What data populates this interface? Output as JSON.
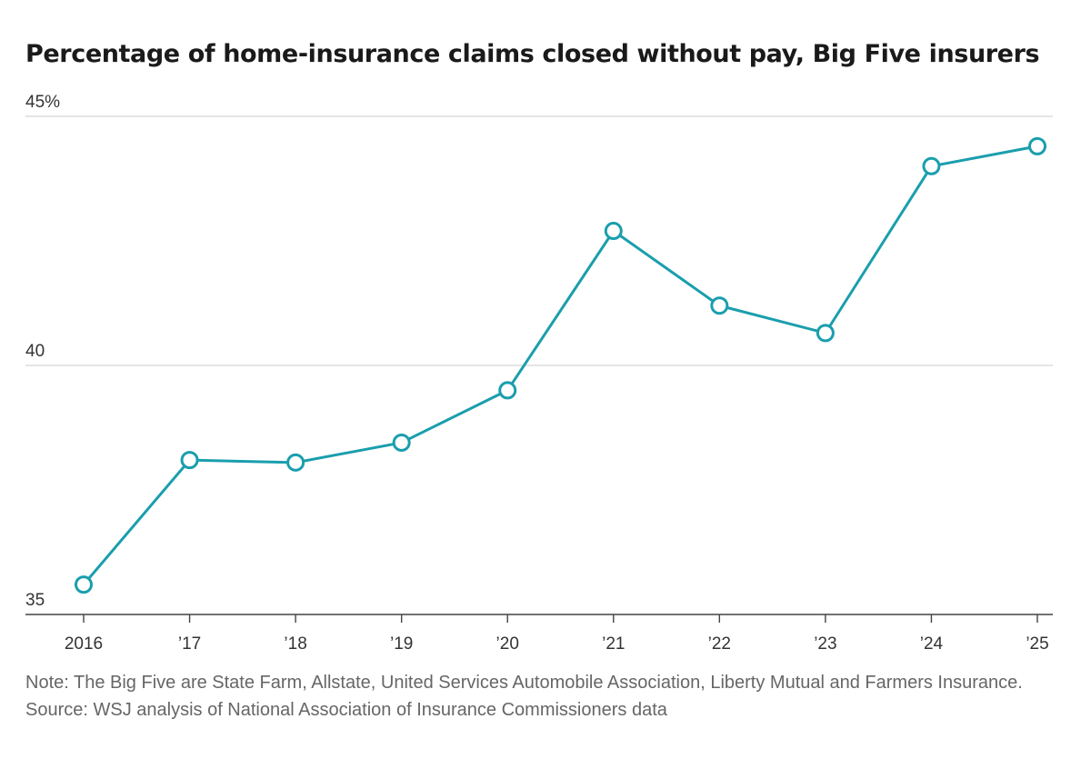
{
  "chart_data": {
    "type": "line",
    "title": "Percentage of home-insurance claims closed without pay, Big Five insurers",
    "x": [
      "2016",
      "’17",
      "’18",
      "’19",
      "’20",
      "’21",
      "’22",
      "’23",
      "’24",
      "’25"
    ],
    "series": [
      {
        "values": [
          35.6,
          38.1,
          38.05,
          38.45,
          39.5,
          42.7,
          41.2,
          40.65,
          44.0,
          44.4
        ],
        "color": "#1a9ead"
      }
    ],
    "y_ticks": [
      {
        "value": 45,
        "label": "45%"
      },
      {
        "value": 40,
        "label": "40"
      },
      {
        "value": 35,
        "label": "35"
      }
    ],
    "ylim": [
      35,
      45
    ],
    "grid": true,
    "colors": {
      "line": "#1a9ead",
      "grid": "#d4d4d4",
      "axis": "#444444"
    }
  },
  "footer": {
    "note": "Note: The Big Five are State Farm, Allstate, United Services Automobile Association, Liberty Mutual and Farmers Insurance.",
    "source": "Source: WSJ analysis of National Association of Insurance Commissioners data"
  }
}
